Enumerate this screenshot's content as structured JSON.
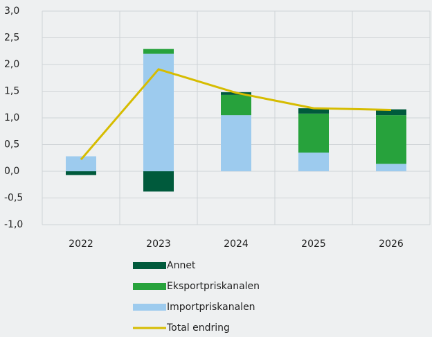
{
  "chart_data": {
    "type": "bar",
    "categories": [
      "2022",
      "2023",
      "2024",
      "2025",
      "2026"
    ],
    "series": [
      {
        "name": "Annet",
        "color": "#005a3c",
        "values": [
          -0.07,
          -0.38,
          0.05,
          0.1,
          0.11
        ]
      },
      {
        "name": "Eksportpriskanalen",
        "color": "#27a23c",
        "values": [
          0,
          0.09,
          0.38,
          0.73,
          0.91
        ]
      },
      {
        "name": "Importpriskanalen",
        "color": "#9dcbee",
        "values": [
          0.28,
          2.2,
          1.05,
          0.35,
          0.14
        ]
      },
      {
        "name": "Total endring",
        "type": "line",
        "color": "#d6bc00",
        "values": [
          0.22,
          1.91,
          1.47,
          1.18,
          1.15
        ]
      }
    ],
    "ylim": [
      -1,
      3
    ],
    "yticks": [
      {
        "value": -1,
        "label": "-1,0"
      },
      {
        "value": -0.5,
        "label": "-0,5"
      },
      {
        "value": 0,
        "label": "0,0"
      },
      {
        "value": 0.5,
        "label": "0,5"
      },
      {
        "value": 1,
        "label": "1,0"
      },
      {
        "value": 1.5,
        "label": "1,5"
      },
      {
        "value": 2,
        "label": "2,0"
      },
      {
        "value": 2.5,
        "label": "2,5"
      },
      {
        "value": 3,
        "label": "3,0"
      }
    ],
    "grid": true,
    "legend": "bottom"
  }
}
